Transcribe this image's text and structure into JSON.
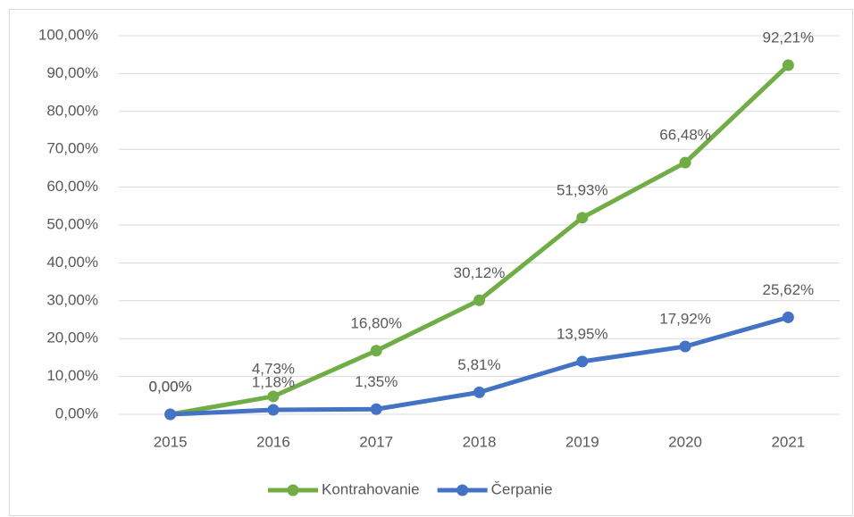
{
  "chart_data": {
    "type": "line",
    "categories": [
      "2015",
      "2016",
      "2017",
      "2018",
      "2019",
      "2020",
      "2021"
    ],
    "series": [
      {
        "name": "Kontrahovanie",
        "color": "#70ad47",
        "values": [
          0,
          4.73,
          16.8,
          30.12,
          51.93,
          66.48,
          92.21
        ],
        "value_labels": [
          "0,00%",
          "4,73%",
          "16,80%",
          "30,12%",
          "51,93%",
          "66,48%",
          "92,21%"
        ]
      },
      {
        "name": "Čerpanie",
        "color": "#4472c4",
        "values": [
          0,
          1.18,
          1.35,
          5.81,
          13.95,
          17.92,
          25.62
        ],
        "value_labels": [
          "0,00%",
          "1,18%",
          "1,35%",
          "5,81%",
          "13,95%",
          "17,92%",
          "25,62%"
        ]
      }
    ],
    "ylim": [
      0,
      100
    ],
    "yticks": [
      {
        "value": 0,
        "label": "0,00%"
      },
      {
        "value": 10,
        "label": "10,00%"
      },
      {
        "value": 20,
        "label": "20,00%"
      },
      {
        "value": 30,
        "label": "30,00%"
      },
      {
        "value": 40,
        "label": "40,00%"
      },
      {
        "value": 50,
        "label": "50,00%"
      },
      {
        "value": 60,
        "label": "60,00%"
      },
      {
        "value": 70,
        "label": "70,00%"
      },
      {
        "value": 80,
        "label": "80,00%"
      },
      {
        "value": 90,
        "label": "90,00%"
      },
      {
        "value": 100,
        "label": "100,00%"
      }
    ],
    "grid": true,
    "legend": "bottom"
  }
}
